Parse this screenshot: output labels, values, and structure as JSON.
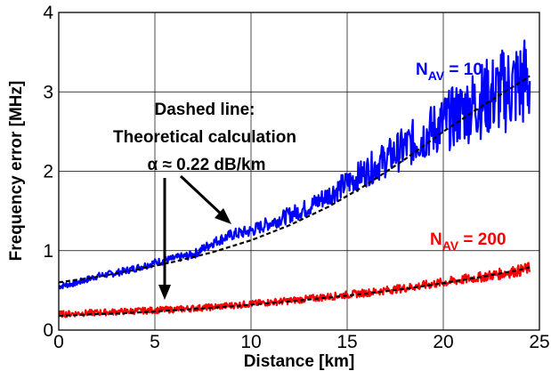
{
  "chart_data": {
    "type": "line",
    "xlabel": "Distance [km]",
    "ylabel": "Frequency error [MHz]",
    "xlim": [
      0,
      25
    ],
    "ylim": [
      0,
      4
    ],
    "xticks": [
      0,
      5,
      10,
      15,
      20,
      25
    ],
    "yticks": [
      0,
      1,
      2,
      3,
      4
    ],
    "grid": true,
    "annotation": {
      "lines": [
        "Dashed line:",
        "Theoretical calculation",
        "α ≈ 0.22 dB/km"
      ]
    },
    "series": [
      {
        "name": "N_AV = 10",
        "label_main": "N",
        "label_sub": "AV",
        "label_rest": " = 10",
        "color": "#0000ff",
        "style": "measured (noisy)",
        "x": [
          0,
          1,
          2,
          3,
          4,
          5,
          6,
          7,
          8,
          9,
          10,
          11,
          12,
          13,
          14,
          15,
          16,
          17,
          18,
          19,
          20,
          21,
          22,
          23,
          24,
          24.5
        ],
        "y": [
          0.55,
          0.6,
          0.68,
          0.72,
          0.78,
          0.85,
          0.9,
          0.95,
          1.1,
          1.2,
          1.25,
          1.35,
          1.45,
          1.55,
          1.7,
          1.85,
          2.0,
          2.15,
          2.3,
          2.45,
          2.6,
          2.75,
          2.9,
          3.0,
          3.1,
          3.15
        ]
      },
      {
        "name": "N_AV = 200",
        "label_main": "N",
        "label_sub": "AV",
        "label_rest": " = 200",
        "color": "#ff0000",
        "style": "measured (noisy)",
        "x": [
          0,
          2,
          4,
          6,
          8,
          10,
          12,
          14,
          16,
          18,
          20,
          22,
          24,
          24.5
        ],
        "y": [
          0.2,
          0.22,
          0.24,
          0.26,
          0.29,
          0.33,
          0.37,
          0.42,
          0.47,
          0.53,
          0.6,
          0.67,
          0.75,
          0.78
        ]
      },
      {
        "name": "Theoretical (N_AV = 10)",
        "color": "#000000",
        "style": "dashed",
        "x": [
          0,
          2,
          4,
          6,
          8,
          10,
          12,
          14,
          16,
          18,
          20,
          22,
          24,
          24.5
        ],
        "y": [
          0.6,
          0.67,
          0.76,
          0.86,
          0.98,
          1.13,
          1.32,
          1.55,
          1.83,
          2.15,
          2.5,
          2.82,
          3.12,
          3.2
        ]
      },
      {
        "name": "Theoretical (N_AV = 200)",
        "color": "#000000",
        "style": "dashed",
        "x": [
          0,
          2,
          4,
          6,
          8,
          10,
          12,
          14,
          16,
          18,
          20,
          22,
          24,
          24.5
        ],
        "y": [
          0.18,
          0.2,
          0.22,
          0.25,
          0.28,
          0.32,
          0.36,
          0.41,
          0.46,
          0.52,
          0.59,
          0.67,
          0.76,
          0.79
        ]
      }
    ]
  }
}
